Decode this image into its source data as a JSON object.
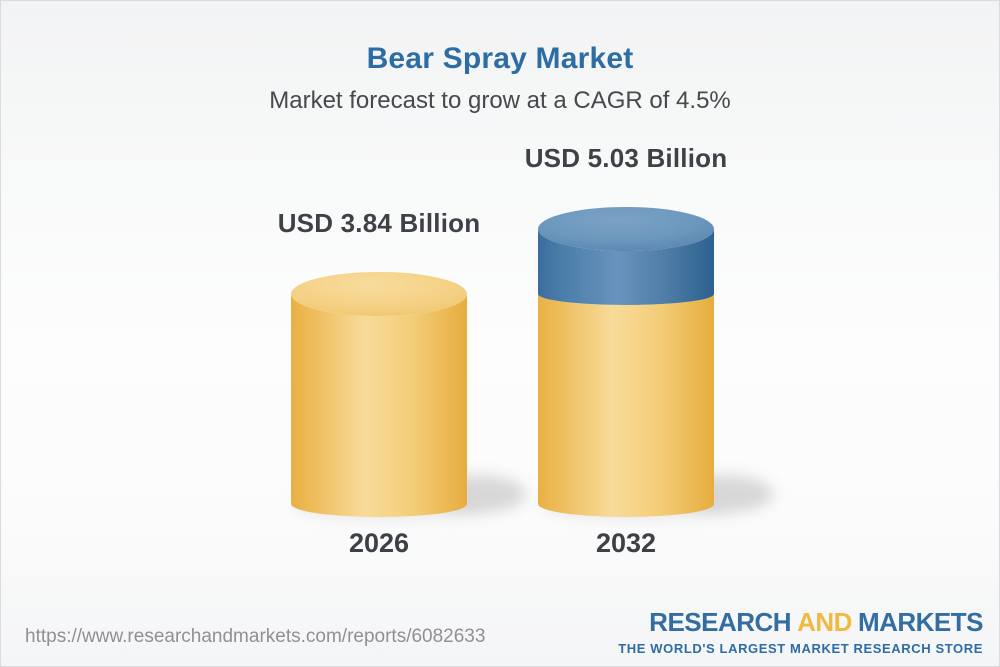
{
  "header": {
    "title": "Bear Spray Market",
    "subtitle": "Market forecast to grow at a CAGR of 4.5%"
  },
  "chart_data": {
    "type": "bar",
    "variant": "3d-cylinder",
    "unit": "USD Billion",
    "cagr_pct": 4.5,
    "categories": [
      "2026",
      "2032"
    ],
    "values": [
      3.84,
      5.03
    ],
    "bars": [
      {
        "year": "2026",
        "label": "USD 3.84 Billion",
        "value": 3.84,
        "segments": [
          {
            "value": 3.84,
            "color": "gold"
          }
        ]
      },
      {
        "year": "2032",
        "label": "USD 5.03 Billion",
        "value": 5.03,
        "segments": [
          {
            "value": 3.84,
            "color": "gold"
          },
          {
            "value": 1.19,
            "color": "blue"
          }
        ]
      }
    ],
    "colors": {
      "gold": "#F2C96E",
      "blue": "#4A7CA8"
    },
    "legend": "none",
    "grid": false,
    "axes": "none"
  },
  "footer": {
    "url": "https://www.researchandmarkets.com/reports/6082633",
    "logo": {
      "part1": "RESEARCH",
      "part2": "AND",
      "part3": "MARKETS",
      "tagline": "THE WORLD'S LARGEST MARKET RESEARCH STORE"
    }
  }
}
